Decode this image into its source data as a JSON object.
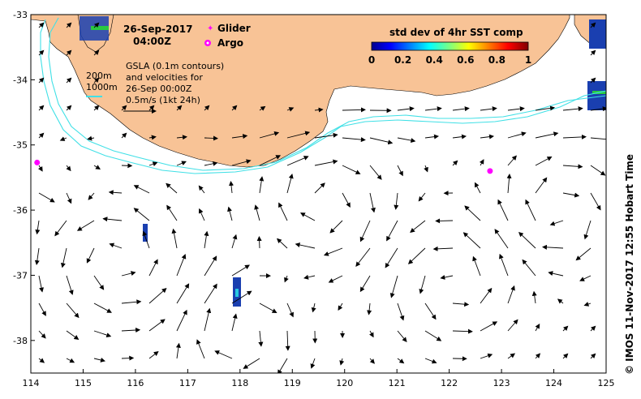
{
  "header": {
    "date": "26-Sep-2017",
    "time": "04:00Z"
  },
  "legend": {
    "glider_label": "Glider",
    "argo_label": "Argo"
  },
  "gsla": {
    "line1": "GSLA (0.1m contours)",
    "line2": "and velocities for",
    "line3": "26-Sep 00:00Z",
    "line4": "0.5m/s (1kt 24h)"
  },
  "bathy": {
    "label_200": "200m",
    "label_1000": "1000m"
  },
  "colorbar": {
    "title": "std dev of 4hr SST comp",
    "ticks": [
      "0",
      "0.2",
      "0.4",
      "0.6",
      "0.8",
      "1"
    ]
  },
  "axes": {
    "x_ticks": [
      "114",
      "115",
      "116",
      "117",
      "118",
      "119",
      "120",
      "121",
      "122",
      "123",
      "124",
      "125"
    ],
    "y_ticks": [
      "-33",
      "-34",
      "-35",
      "-36",
      "-37",
      "-38"
    ]
  },
  "credit": "©  IMOS 11-Nov-2017 12:55 Hobart Time",
  "colors": {
    "land": "#f8c396",
    "isobath": "#40e0e6",
    "argo": "#ff00ff",
    "glider": "#ff00ff"
  },
  "map_data": {
    "argo_positions": [
      {
        "lon": 114.12,
        "lat": -35.27
      },
      {
        "lon": 122.78,
        "lat": -35.4
      }
    ]
  }
}
